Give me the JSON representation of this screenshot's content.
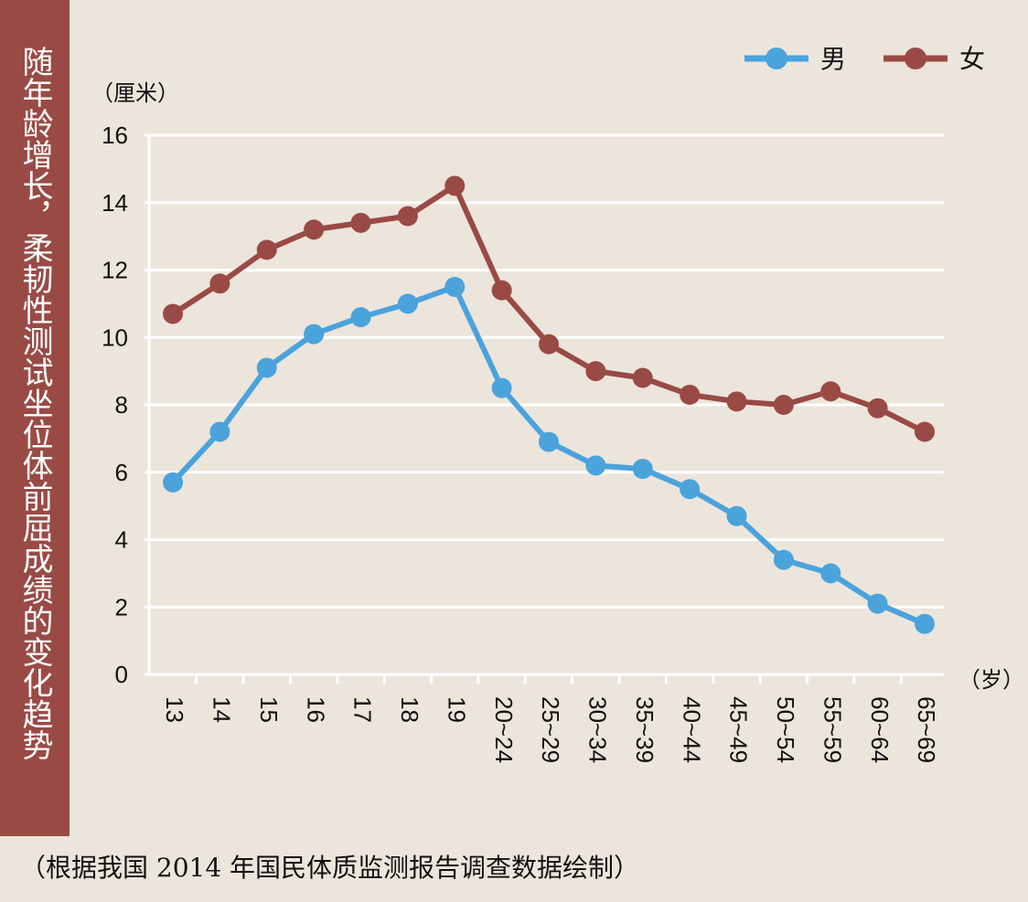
{
  "side_title": "随年龄增长，柔韧性测试坐位体前屈成绩的变化趋势",
  "caption": "（根据我国 2014 年国民体质监测报告调查数据绘制）",
  "chart_data": {
    "type": "line",
    "title": "随年龄增长，柔韧性测试坐位体前屈成绩的变化趋势",
    "ylabel": "（厘米）",
    "xlabel": "（岁）",
    "ylim": [
      0,
      16
    ],
    "yticks": [
      0,
      2,
      4,
      6,
      8,
      10,
      12,
      14,
      16
    ],
    "grid": true,
    "legend_position": "top-right",
    "categories": [
      "13",
      "14",
      "15",
      "16",
      "17",
      "18",
      "19",
      "20~24",
      "25~29",
      "30~34",
      "35~39",
      "40~44",
      "45~49",
      "50~54",
      "55~59",
      "60~64",
      "65~69"
    ],
    "series": [
      {
        "name": "男",
        "color": "#4ba3dc",
        "values": [
          5.7,
          7.2,
          9.1,
          10.1,
          10.6,
          11.0,
          11.5,
          8.5,
          6.9,
          6.2,
          6.1,
          5.5,
          4.7,
          3.4,
          3.0,
          2.1,
          1.5
        ]
      },
      {
        "name": "女",
        "color": "#9a4a45",
        "values": [
          10.7,
          11.6,
          12.6,
          13.2,
          13.4,
          13.6,
          14.5,
          11.4,
          9.8,
          9.0,
          8.8,
          8.3,
          8.1,
          8.0,
          8.4,
          7.9,
          7.2
        ]
      }
    ]
  }
}
